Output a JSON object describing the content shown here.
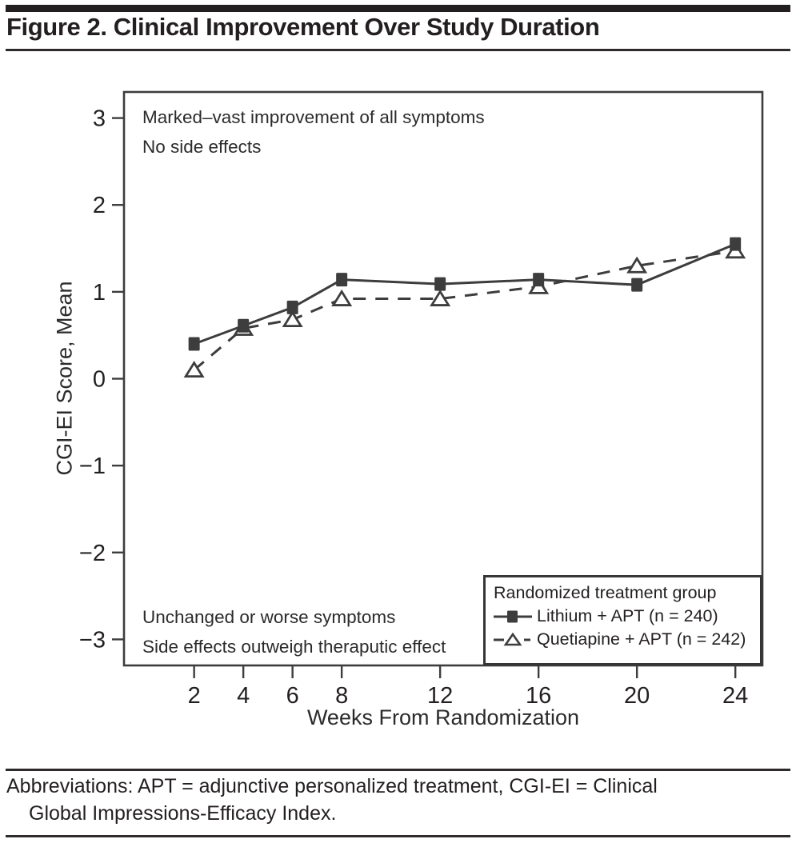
{
  "figure": {
    "title": "Figure 2. Clinical Improvement Over Study Duration"
  },
  "chart_data": {
    "type": "line",
    "title": "Figure 2. Clinical Improvement Over Study Duration",
    "xlabel": "Weeks From Randomization",
    "ylabel": "CGI-EI Score, Mean",
    "x": [
      2,
      4,
      6,
      8,
      12,
      16,
      20,
      24
    ],
    "yticks": [
      3,
      2,
      1,
      0,
      -1,
      -2,
      -3
    ],
    "xlim": [
      -0.85,
      25.1
    ],
    "ylim": [
      -3.3,
      3.3
    ],
    "grid": false,
    "legend": {
      "title": "Randomized treatment group",
      "position": "inside-bottom-right"
    },
    "series": [
      {
        "name": "Lithium + APT (n = 240)",
        "line": "solid",
        "marker": "filled-square",
        "values": [
          0.4,
          0.61,
          0.82,
          1.14,
          1.09,
          1.14,
          1.08,
          1.55
        ]
      },
      {
        "name": "Quetiapine + APT (n = 242)",
        "line": "dashed",
        "marker": "open-triangle",
        "values": [
          0.1,
          0.58,
          0.68,
          0.92,
          0.92,
          1.06,
          1.3,
          1.47
        ]
      }
    ],
    "annotations": {
      "top_left": [
        "Marked–vast improvement of all symptoms",
        "No side effects"
      ],
      "bottom_left": [
        "Unchanged or worse symptoms",
        "Side effects outweigh theraputic effect"
      ]
    }
  },
  "footer": {
    "lines": [
      "Abbreviations: APT = adjunctive personalized treatment, CGI-EI = Clinical",
      "Global Impressions-Efficacy Index."
    ]
  },
  "colors": {
    "ink": "#231f20",
    "line": "#3d3d3d"
  }
}
